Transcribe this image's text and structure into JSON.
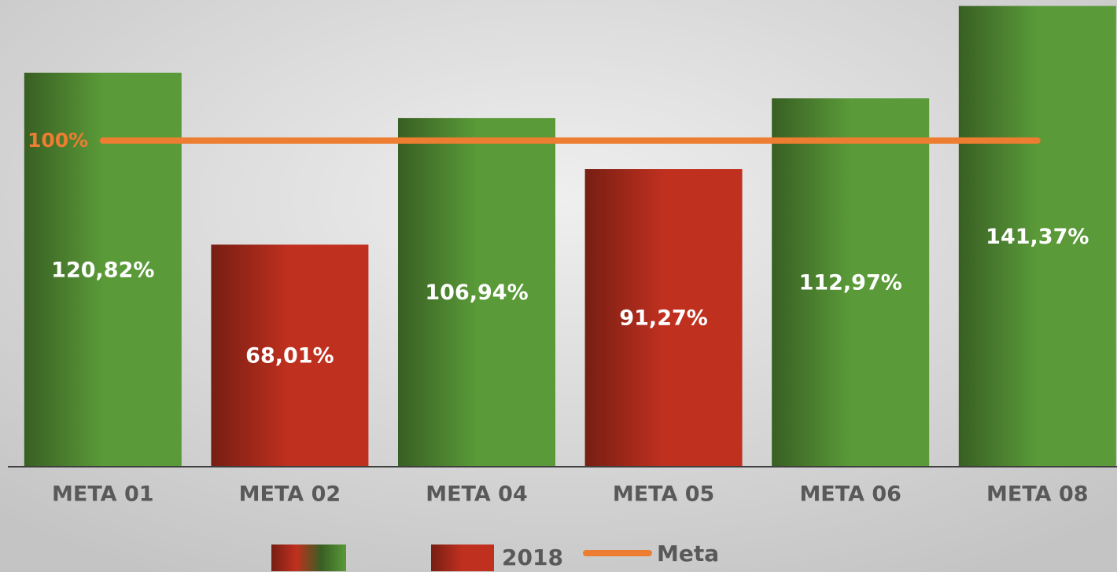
{
  "chart_data": {
    "type": "bar",
    "categories": [
      "META 01",
      "META 02",
      "META 04",
      "META 05",
      "META 06",
      "META 08"
    ],
    "values": [
      120.82,
      68.01,
      106.94,
      91.27,
      112.97,
      141.37
    ],
    "value_labels": [
      "120,82%",
      "68,01%",
      "106,94%",
      "91,27%",
      "112,97%",
      "141,37%"
    ],
    "colors": [
      "#5a9a38",
      "#c0301f",
      "#5a9a38",
      "#c0301f",
      "#5a9a38",
      "#5a9a38"
    ],
    "ylim": [
      0,
      143.2
    ],
    "reference_line": {
      "name": "Meta",
      "value": 100,
      "label": "100%",
      "color": "#ed7d31"
    },
    "legend": [
      {
        "colors": [
          "#c0301f",
          "#5a9a38"
        ]
      },
      {
        "name": "2018",
        "color": "#c0301f"
      }
    ]
  }
}
